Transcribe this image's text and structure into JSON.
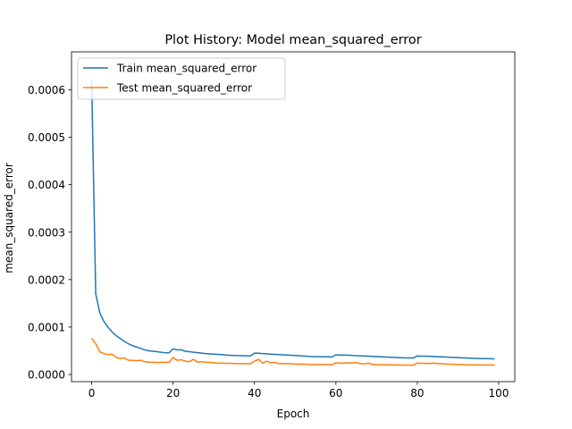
{
  "chart_data": {
    "type": "line",
    "title": "Plot History: Model mean_squared_error",
    "xlabel": "Epoch",
    "ylabel": "mean_squared_error",
    "xlim": [
      -4.95,
      103.95
    ],
    "ylim": [
      -1.5e-05,
      0.00068
    ],
    "xticks": [
      0,
      20,
      40,
      60,
      80,
      100
    ],
    "yticks": [
      0.0,
      0.0001,
      0.0002,
      0.0003,
      0.0004,
      0.0005,
      0.0006
    ],
    "ytick_labels": [
      "0.0000",
      "0.0001",
      "0.0002",
      "0.0003",
      "0.0004",
      "0.0005",
      "0.0006"
    ],
    "grid": false,
    "legend": "upper-left",
    "x": [
      0,
      1,
      2,
      3,
      4,
      5,
      6,
      7,
      8,
      9,
      10,
      11,
      12,
      13,
      14,
      15,
      16,
      17,
      18,
      19,
      20,
      21,
      22,
      23,
      24,
      25,
      26,
      27,
      28,
      29,
      30,
      31,
      32,
      33,
      34,
      35,
      36,
      37,
      38,
      39,
      40,
      41,
      42,
      43,
      44,
      45,
      46,
      47,
      48,
      49,
      50,
      51,
      52,
      53,
      54,
      55,
      56,
      57,
      58,
      59,
      60,
      61,
      62,
      63,
      64,
      65,
      66,
      67,
      68,
      69,
      70,
      71,
      72,
      73,
      74,
      75,
      76,
      77,
      78,
      79,
      80,
      81,
      82,
      83,
      84,
      85,
      86,
      87,
      88,
      89,
      90,
      91,
      92,
      93,
      94,
      95,
      96,
      97,
      98,
      99
    ],
    "series": [
      {
        "name": "Train mean_squared_error",
        "color": "#1f77b4",
        "values": [
          0.00062,
          0.00017,
          0.00013,
          0.000112,
          0.0001,
          9e-05,
          8.2e-05,
          7.6e-05,
          7e-05,
          6.5e-05,
          6.1e-05,
          5.8e-05,
          5.5e-05,
          5.2e-05,
          5e-05,
          4.9e-05,
          4.8e-05,
          4.7e-05,
          4.6e-05,
          4.55e-05,
          5.4e-05,
          5.2e-05,
          5.2e-05,
          4.9e-05,
          4.8e-05,
          4.7e-05,
          4.6e-05,
          4.5e-05,
          4.4e-05,
          4.35e-05,
          4.3e-05,
          4.25e-05,
          4.2e-05,
          4.1e-05,
          4.05e-05,
          4e-05,
          3.98e-05,
          3.96e-05,
          3.94e-05,
          3.92e-05,
          4.5e-05,
          4.48e-05,
          4.42e-05,
          4.36e-05,
          4.3e-05,
          4.25e-05,
          4.2e-05,
          4.15e-05,
          4.1e-05,
          4.05e-05,
          4e-05,
          3.95e-05,
          3.9e-05,
          3.85e-05,
          3.8e-05,
          3.78e-05,
          3.76e-05,
          3.74e-05,
          3.72e-05,
          3.7e-05,
          4.15e-05,
          4.1e-05,
          4.1e-05,
          4.08e-05,
          4.02e-05,
          3.98e-05,
          3.94e-05,
          3.9e-05,
          3.86e-05,
          3.82e-05,
          3.78e-05,
          3.74e-05,
          3.7e-05,
          3.66e-05,
          3.62e-05,
          3.58e-05,
          3.55e-05,
          3.52e-05,
          3.5e-05,
          3.48e-05,
          3.9e-05,
          3.88e-05,
          3.86e-05,
          3.84e-05,
          3.8e-05,
          3.76e-05,
          3.72e-05,
          3.68e-05,
          3.64e-05,
          3.6e-05,
          3.56e-05,
          3.52e-05,
          3.48e-05,
          3.44e-05,
          3.4e-05,
          3.38e-05,
          3.36e-05,
          3.34e-05,
          3.32e-05,
          3.3e-05
        ]
      },
      {
        "name": "Test mean_squared_error",
        "color": "#ff7f0e",
        "values": [
          7.6e-05,
          6.5e-05,
          4.8e-05,
          4.4e-05,
          4.2e-05,
          4.3e-05,
          3.6e-05,
          3.4e-05,
          3.5e-05,
          3e-05,
          3e-05,
          2.9e-05,
          3e-05,
          2.7e-05,
          2.6e-05,
          2.6e-05,
          2.55e-05,
          2.55e-05,
          2.6e-05,
          2.55e-05,
          3.6e-05,
          3e-05,
          3.1e-05,
          2.8e-05,
          2.7e-05,
          3.2e-05,
          2.6e-05,
          2.7e-05,
          2.6e-05,
          2.55e-05,
          2.5e-05,
          2.4e-05,
          2.38e-05,
          2.35e-05,
          2.35e-05,
          2.32e-05,
          2.3e-05,
          2.3e-05,
          2.28e-05,
          2.26e-05,
          2.8e-05,
          3.2e-05,
          2.4e-05,
          2.8e-05,
          2.5e-05,
          2.55e-05,
          2.3e-05,
          2.3e-05,
          2.32e-05,
          2.25e-05,
          2.22e-05,
          2.18e-05,
          2.2e-05,
          2.15e-05,
          2.1e-05,
          2.1e-05,
          2.1e-05,
          2.1e-05,
          2.1e-05,
          2.1e-05,
          2.45e-05,
          2.4e-05,
          2.38e-05,
          2.45e-05,
          2.4e-05,
          2.5e-05,
          2.3e-05,
          2.25e-05,
          2.4e-05,
          2.1e-05,
          2.1e-05,
          2.08e-05,
          2.06e-05,
          2.05e-05,
          2.03e-05,
          2e-05,
          2e-05,
          1.98e-05,
          1.98e-05,
          1.98e-05,
          2.4e-05,
          2.35e-05,
          2.35e-05,
          2.3e-05,
          2.4e-05,
          2.3e-05,
          2.3e-05,
          2.2e-05,
          2.2e-05,
          2.15e-05,
          2.12e-05,
          2.1e-05,
          2.06e-05,
          2.04e-05,
          2.02e-05,
          2e-05,
          2e-05,
          2e-05,
          2e-05,
          2e-05
        ]
      }
    ]
  }
}
